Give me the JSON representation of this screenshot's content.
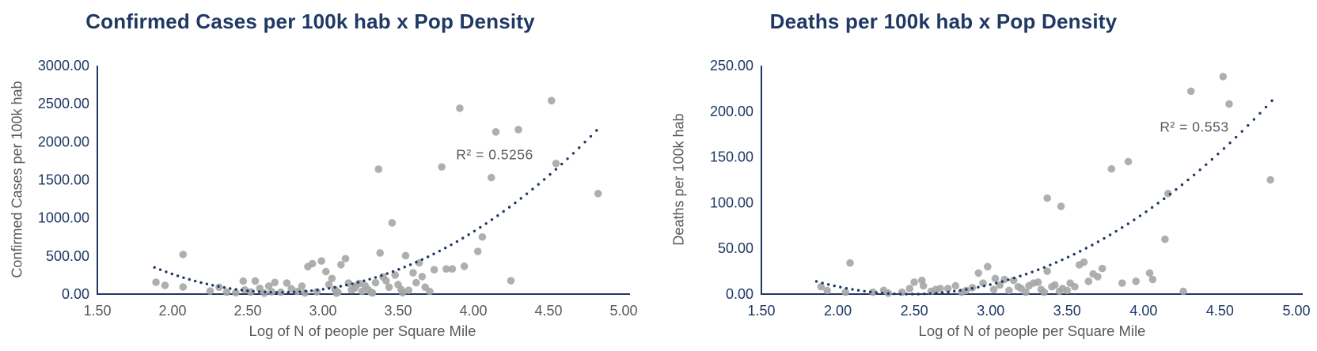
{
  "styles": {
    "navy": "#1f3864",
    "gray": "#595959",
    "marker_fill": "#a6a6a6",
    "axis_color": "#1f3864",
    "trendline_color": "#1f3864"
  },
  "chart_data": [
    {
      "type": "scatter",
      "title": "Confirmed Cases per 100k hab x Pop Density",
      "xlabel": "Log of N of people per Square Mile",
      "ylabel": "Confirmed Cases per 100k hab",
      "annotation": "R² = 0.5256",
      "xlim": [
        1.5,
        5.0
      ],
      "ylim": [
        0,
        3000
      ],
      "x_tick_labels": [
        "1.50",
        "2.00",
        "2.50",
        "3.00",
        "3.50",
        "4.00",
        "4.50",
        "5.00"
      ],
      "y_tick_labels": [
        "0.00",
        "500.00",
        "1000.00",
        "1500.00",
        "2000.00",
        "2500.00",
        "3000.00"
      ],
      "x_tick_color": "#595959",
      "y_tick_color": "#1f3864",
      "grid": false,
      "legend": null,
      "points": [
        [
          1.89,
          155
        ],
        [
          1.95,
          115
        ],
        [
          2.07,
          520
        ],
        [
          2.07,
          93
        ],
        [
          2.25,
          40
        ],
        [
          2.31,
          90
        ],
        [
          2.36,
          25
        ],
        [
          2.42,
          18
        ],
        [
          2.47,
          170
        ],
        [
          2.48,
          55
        ],
        [
          2.52,
          28
        ],
        [
          2.55,
          172
        ],
        [
          2.58,
          75
        ],
        [
          2.61,
          12
        ],
        [
          2.64,
          105
        ],
        [
          2.66,
          30
        ],
        [
          2.68,
          152
        ],
        [
          2.72,
          25
        ],
        [
          2.76,
          145
        ],
        [
          2.79,
          70
        ],
        [
          2.83,
          35
        ],
        [
          2.86,
          105
        ],
        [
          2.88,
          15
        ],
        [
          2.9,
          360
        ],
        [
          2.93,
          400
        ],
        [
          2.96,
          30
        ],
        [
          2.99,
          435
        ],
        [
          3.02,
          295
        ],
        [
          3.04,
          125
        ],
        [
          3.06,
          205
        ],
        [
          3.08,
          60
        ],
        [
          3.09,
          12
        ],
        [
          3.1,
          25
        ],
        [
          3.12,
          385
        ],
        [
          3.15,
          465
        ],
        [
          3.17,
          145
        ],
        [
          3.19,
          55
        ],
        [
          3.21,
          75
        ],
        [
          3.22,
          105
        ],
        [
          3.24,
          140
        ],
        [
          3.26,
          35
        ],
        [
          3.28,
          110
        ],
        [
          3.3,
          60
        ],
        [
          3.32,
          25
        ],
        [
          3.33,
          15
        ],
        [
          3.35,
          150
        ],
        [
          3.37,
          1640
        ],
        [
          3.38,
          540
        ],
        [
          3.4,
          225
        ],
        [
          3.42,
          175
        ],
        [
          3.44,
          90
        ],
        [
          3.46,
          935
        ],
        [
          3.48,
          250
        ],
        [
          3.5,
          125
        ],
        [
          3.52,
          60
        ],
        [
          3.53,
          18
        ],
        [
          3.55,
          505
        ],
        [
          3.57,
          50
        ],
        [
          3.6,
          280
        ],
        [
          3.62,
          150
        ],
        [
          3.64,
          410
        ],
        [
          3.66,
          230
        ],
        [
          3.68,
          90
        ],
        [
          3.71,
          35
        ],
        [
          3.74,
          320
        ],
        [
          3.79,
          1670
        ],
        [
          3.82,
          330
        ],
        [
          3.86,
          330
        ],
        [
          3.91,
          2440
        ],
        [
          3.94,
          365
        ],
        [
          4.03,
          560
        ],
        [
          4.06,
          750
        ],
        [
          4.12,
          1530
        ],
        [
          4.15,
          2130
        ],
        [
          4.25,
          175
        ],
        [
          4.3,
          2160
        ],
        [
          4.52,
          2540
        ],
        [
          4.55,
          1715
        ],
        [
          4.83,
          1320
        ]
      ],
      "trendline": {
        "style": "dotted",
        "poly_a": 477,
        "poly_b": -2584,
        "poly_c": 3522,
        "x_range": [
          1.88,
          4.82
        ]
      }
    },
    {
      "type": "scatter",
      "title": "Deaths per 100k hab x Pop Density",
      "xlabel": "Log of N of people per Square Mile",
      "ylabel": "Deaths per 100k hab",
      "annotation": "R² = 0.553",
      "xlim": [
        1.5,
        5.0
      ],
      "ylim": [
        0,
        250
      ],
      "x_tick_labels": [
        "1.50",
        "2.00",
        "2.50",
        "3.00",
        "3.50",
        "4.00",
        "4.50",
        "5.00"
      ],
      "y_tick_labels": [
        "0.00",
        "50.00",
        "100.00",
        "150.00",
        "200.00",
        "250.00"
      ],
      "x_tick_color": "#1f3864",
      "y_tick_color": "#1f3864",
      "grid": false,
      "legend": null,
      "points": [
        [
          1.89,
          8
        ],
        [
          1.93,
          4
        ],
        [
          2.05,
          2
        ],
        [
          2.08,
          34
        ],
        [
          2.23,
          2
        ],
        [
          2.3,
          4
        ],
        [
          2.33,
          1
        ],
        [
          2.42,
          2
        ],
        [
          2.47,
          6
        ],
        [
          2.5,
          13
        ],
        [
          2.55,
          15
        ],
        [
          2.56,
          9
        ],
        [
          2.61,
          3
        ],
        [
          2.64,
          5
        ],
        [
          2.67,
          6
        ],
        [
          2.72,
          6
        ],
        [
          2.77,
          9
        ],
        [
          2.81,
          2
        ],
        [
          2.84,
          4
        ],
        [
          2.88,
          7
        ],
        [
          2.92,
          23
        ],
        [
          2.95,
          12
        ],
        [
          2.98,
          30
        ],
        [
          3.02,
          5
        ],
        [
          3.03,
          17
        ],
        [
          3.06,
          10
        ],
        [
          3.09,
          16
        ],
        [
          3.12,
          4
        ],
        [
          3.15,
          15
        ],
        [
          3.18,
          8
        ],
        [
          3.2,
          6
        ],
        [
          3.23,
          2
        ],
        [
          3.25,
          9
        ],
        [
          3.28,
          12
        ],
        [
          3.31,
          13
        ],
        [
          3.33,
          5
        ],
        [
          3.35,
          2
        ],
        [
          3.37,
          105
        ],
        [
          3.37,
          25
        ],
        [
          3.4,
          8
        ],
        [
          3.42,
          10
        ],
        [
          3.45,
          3
        ],
        [
          3.46,
          96
        ],
        [
          3.47,
          6
        ],
        [
          3.5,
          4
        ],
        [
          3.52,
          12
        ],
        [
          3.55,
          8
        ],
        [
          3.58,
          32
        ],
        [
          3.61,
          35
        ],
        [
          3.64,
          14
        ],
        [
          3.67,
          22
        ],
        [
          3.7,
          19
        ],
        [
          3.73,
          28
        ],
        [
          3.79,
          137
        ],
        [
          3.86,
          12
        ],
        [
          3.9,
          145
        ],
        [
          3.95,
          14
        ],
        [
          4.04,
          23
        ],
        [
          4.06,
          16
        ],
        [
          4.14,
          60
        ],
        [
          4.16,
          110
        ],
        [
          4.26,
          3
        ],
        [
          4.31,
          222
        ],
        [
          4.52,
          238
        ],
        [
          4.56,
          208
        ],
        [
          4.83,
          125
        ]
      ],
      "trendline": {
        "style": "dotted",
        "poly_a": 37.65,
        "poly_b": -185.9,
        "poly_c": 229.4,
        "x_range": [
          1.86,
          4.84
        ]
      }
    }
  ]
}
